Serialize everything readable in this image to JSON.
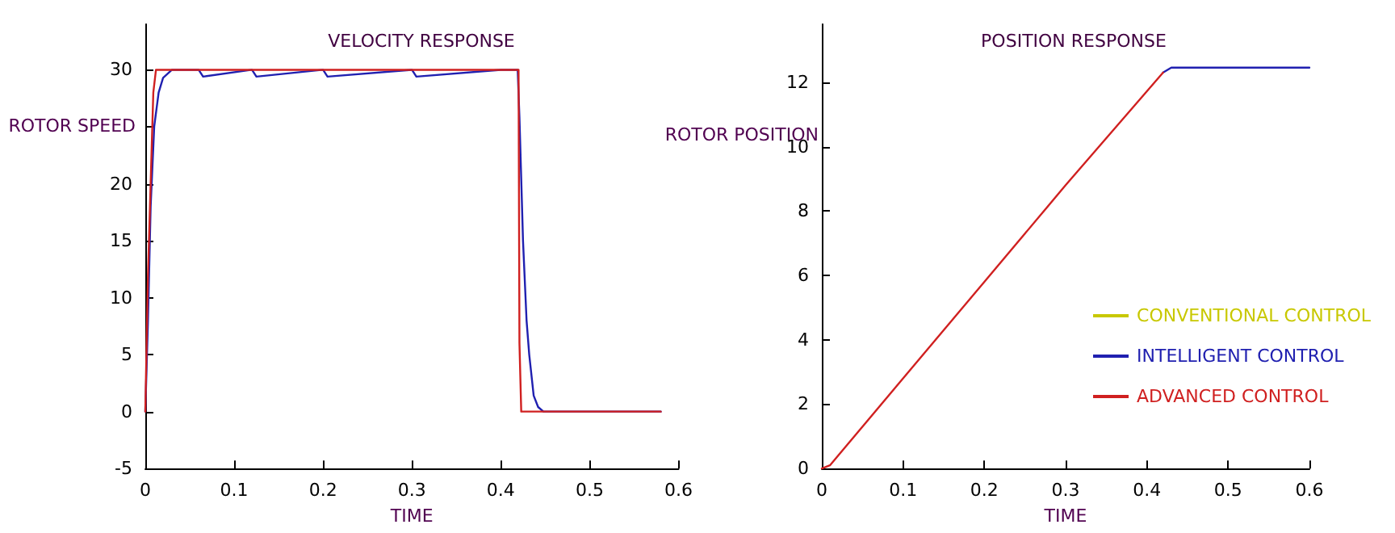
{
  "chart_data": [
    {
      "type": "line",
      "title": "VELOCITY RESPONSE",
      "xlabel": "TIME",
      "ylabel": "ROTOR SPEED",
      "xlim": [
        0,
        0.6
      ],
      "ylim": [
        -5,
        34
      ],
      "xticks": [
        0,
        0.1,
        0.2,
        0.3,
        0.4,
        0.5,
        0.6
      ],
      "yticks": [
        -5,
        0,
        5,
        10,
        15,
        20,
        {
          "value": 25,
          "label": null
        },
        30
      ],
      "grid": false,
      "series": [
        {
          "color": "#2020b0",
          "x": [
            0,
            0.003,
            0.006,
            0.01,
            0.015,
            0.02,
            0.03,
            0.06,
            0.065,
            0.12,
            0.125,
            0.2,
            0.205,
            0.3,
            0.305,
            0.4,
            0.419,
            0.421,
            0.425,
            0.429,
            0.432,
            0.437,
            0.442,
            0.448,
            0.58
          ],
          "values": [
            0,
            8,
            18,
            25,
            28,
            29.3,
            30,
            30,
            29.4,
            30,
            29.4,
            30,
            29.4,
            30,
            29.4,
            30,
            30,
            25.8,
            15,
            8,
            5,
            1.4,
            0.4,
            0,
            0
          ]
        },
        {
          "color": "#d02020",
          "x": [
            0,
            0.003,
            0.006,
            0.009,
            0.012,
            0.42,
            0.421,
            0.423,
            0.58
          ],
          "values": [
            0,
            12,
            20,
            28,
            30,
            30,
            6,
            0,
            0
          ]
        }
      ]
    },
    {
      "type": "line",
      "title": "POSITION RESPONSE",
      "xlabel": "TIME",
      "ylabel": "ROTOR POSITION",
      "xlim": [
        0,
        0.6
      ],
      "ylim": [
        0,
        13.8
      ],
      "xticks": [
        0,
        0.1,
        0.2,
        0.3,
        0.4,
        0.5,
        0.6
      ],
      "yticks": [
        0,
        2,
        4,
        6,
        8,
        10,
        12
      ],
      "grid": false,
      "legend": "right",
      "series": [
        {
          "name": "CONVENTIONAL CONTROL",
          "color": "#c8c800"
        },
        {
          "name": "INTELLIGENT CONTROL",
          "color": "#2020b0",
          "x": [
            0.42,
            0.43,
            0.6
          ],
          "values": [
            12.3,
            12.45,
            12.45
          ]
        },
        {
          "name": "ADVANCED CONTROL",
          "color": "#d02020",
          "x": [
            0,
            0.01,
            0.02,
            0.1,
            0.2,
            0.3,
            0.42
          ],
          "values": [
            0,
            0.1,
            0.4,
            2.8,
            5.8,
            8.8,
            12.3
          ]
        }
      ]
    }
  ]
}
